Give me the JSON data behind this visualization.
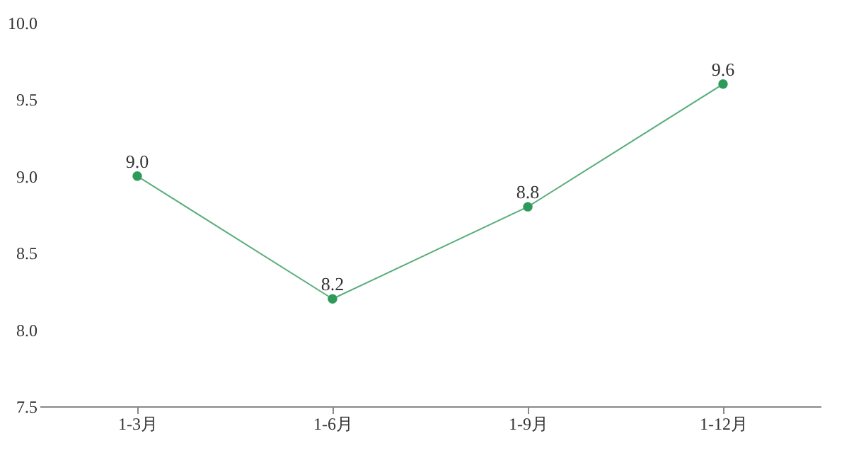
{
  "chart_data": {
    "type": "line",
    "categories": [
      "1-3月",
      "1-6月",
      "1-9月",
      "1-12月"
    ],
    "series": [
      {
        "color": "#2e9a5a",
        "values": [
          9.0,
          8.2,
          8.8,
          9.6
        ],
        "value_labels": [
          "9.0",
          "8.2",
          "8.8",
          "9.6"
        ]
      }
    ],
    "ylim": [
      7.5,
      10.0
    ],
    "yticks": [
      {
        "value": 7.5,
        "label": "7.5"
      },
      {
        "value": 8,
        "label": "8.0"
      },
      {
        "value": 8.5,
        "label": "8.5"
      },
      {
        "value": 9,
        "label": "9.0"
      },
      {
        "value": 9.5,
        "label": "9.5"
      },
      {
        "value": 10,
        "label": "10.0"
      }
    ],
    "grid": false,
    "marker": "circle",
    "line_style": "solid"
  }
}
